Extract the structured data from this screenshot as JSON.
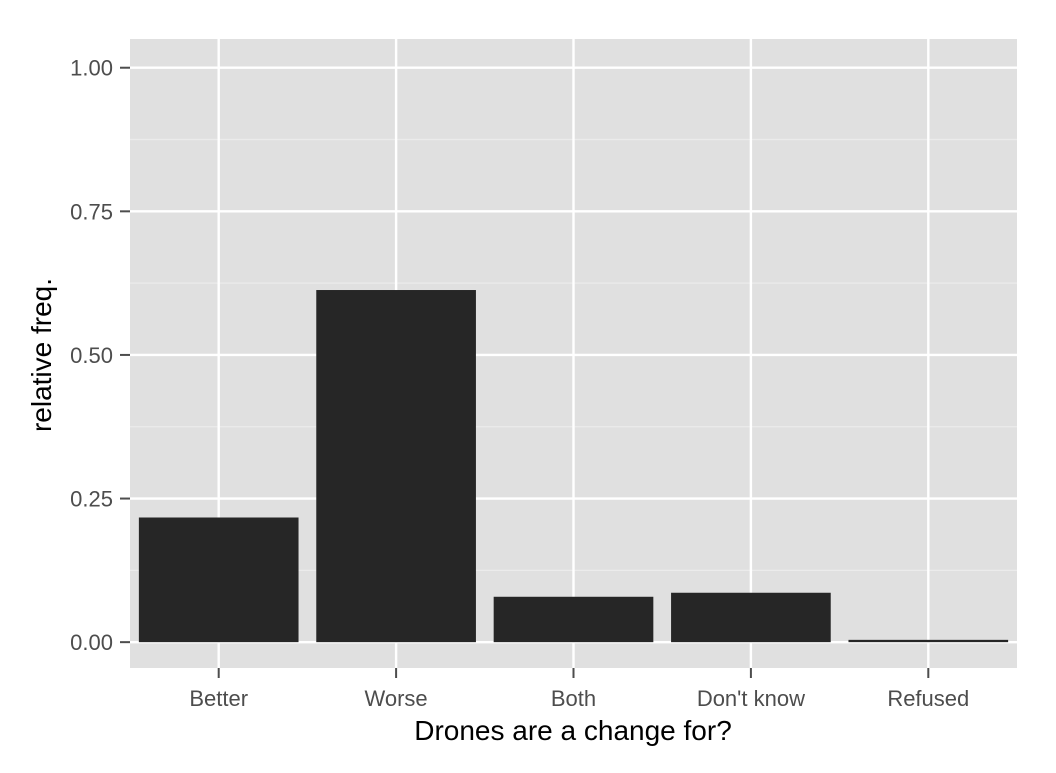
{
  "chart_data": {
    "type": "bar",
    "categories": [
      "Better",
      "Worse",
      "Both",
      "Don't know",
      "Refused"
    ],
    "values": [
      0.217,
      0.613,
      0.079,
      0.086,
      0.004
    ],
    "xlabel": "Drones are a change for?",
    "ylabel": "relative freq.",
    "ylim": [
      -0.045,
      1.05
    ],
    "yticks": [
      0.0,
      0.25,
      0.5,
      0.75,
      1.0
    ],
    "ytick_labels": [
      "0.00",
      "0.25",
      "0.50",
      "0.75",
      "1.00"
    ],
    "grid": true,
    "legend": "none",
    "colors": {
      "bar": "#262626",
      "panel_background": "#e0e0e0",
      "grid_major": "#ffffff",
      "grid_minor": "#ebebeb",
      "tick": "#4d4d4d"
    }
  }
}
